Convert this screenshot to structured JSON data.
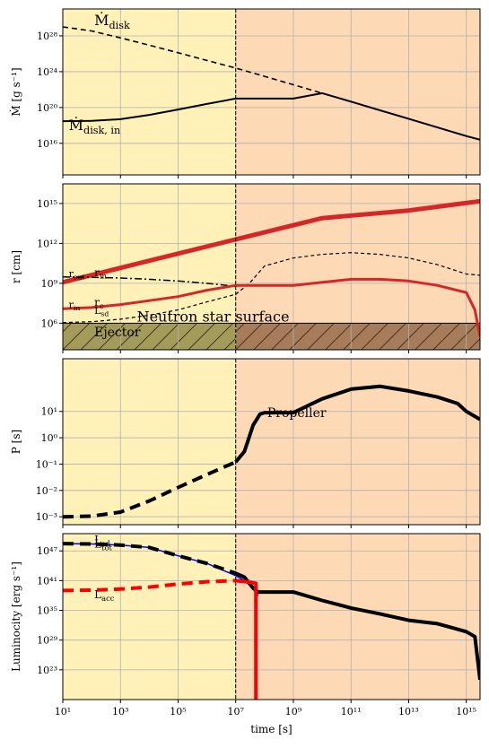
{
  "chart_data": [
    {
      "type": "line",
      "ylabel": "Ṁ [g s⁻¹]",
      "xscale": "log",
      "yscale": "log",
      "xlim": [
        10,
        3000000000000000.0
      ],
      "ylim": [
        3000000000000.0,
        1e+31
      ],
      "yticks": [
        {
          "v": 1e+16,
          "label": "10¹⁶"
        },
        {
          "v": 1e+20,
          "label": "10²⁰"
        },
        {
          "v": 1e+24,
          "label": "10²⁴"
        },
        {
          "v": 1e+28,
          "label": "10²⁸"
        }
      ],
      "grid": true,
      "regions": [
        {
          "from": 10,
          "to": 10000000.0,
          "color": "#fff1b8"
        },
        {
          "from": 10000000.0,
          "to": 3000000000000000.0,
          "color": "#fdd9b5"
        }
      ],
      "vline": 10000000.0,
      "series": [
        {
          "name": "Ṁdisk",
          "color": "#000000",
          "dash": "6,4",
          "width": 1.6,
          "x": [
            10,
            100,
            1000,
            10000.0,
            100000.0,
            1000000.0,
            10000000.0,
            100000000.0,
            1000000000.0,
            10000000000.0,
            100000000000.0,
            1000000000000.0,
            10000000000000.0,
            100000000000000.0,
            1000000000000000.0,
            3000000000000000.0
          ],
          "y": [
            1e+29,
            3.5e+28,
            6e+27,
            9e+26,
            1.3e+26,
            1.8e+25,
            2.5e+24,
            3e+23,
            3.5e+22,
            4e+21,
            4.5e+20,
            5e+19,
            5.5e+18,
            6e+17,
            6.5e+16,
            2.5e+16
          ]
        },
        {
          "name": "Ṁdisk,in",
          "color": "#000000",
          "dash": "",
          "width": 2,
          "x": [
            10,
            100,
            1000,
            10000.0,
            100000.0,
            1000000.0,
            10000000.0,
            100000000.0,
            1000000000.0,
            10000000000.0,
            100000000000.0,
            1000000000000.0,
            10000000000000.0,
            100000000000000.0,
            1000000000000000.0,
            3000000000000000.0
          ],
          "y": [
            3e+18,
            3.2e+18,
            5e+18,
            1.5e+19,
            6e+19,
            2.5e+20,
            1e+21,
            1e+21,
            1e+21,
            4e+21,
            4.5e+20,
            5e+19,
            5.5e+18,
            6e+17,
            6.5e+16,
            2.5e+16
          ]
        }
      ],
      "annotations": [
        {
          "text": "Ṁdisk",
          "x": 100,
          "y": 1.5e+29,
          "size": 16
        },
        {
          "text": "Ṁdisk, in",
          "x": 13,
          "y": 3e+17,
          "size": 16
        }
      ]
    },
    {
      "type": "line",
      "ylabel": "r [cm]",
      "xscale": "log",
      "yscale": "log",
      "xlim": [
        10,
        3000000000000000.0
      ],
      "ylim": [
        10000.0,
        3e+16
      ],
      "yticks": [
        {
          "v": 1000000.0,
          "label": "10⁶"
        },
        {
          "v": 1000000000.0,
          "label": "10⁹"
        },
        {
          "v": 1000000000000.0,
          "label": "10¹²"
        },
        {
          "v": 1000000000000000.0,
          "label": "10¹⁵"
        }
      ],
      "grid": true,
      "regions": [
        {
          "from": 10,
          "to": 10000000.0,
          "color": "#fff1b8"
        },
        {
          "from": 10000000.0,
          "to": 3000000000000000.0,
          "color": "#fdd9b5"
        }
      ],
      "vline": 10000000.0,
      "bands": [
        {
          "name": "Ejector",
          "from": 10,
          "to": 10000000.0,
          "ylow": 10000.0,
          "yhigh": 1000000.0,
          "color": "#a39b5a"
        },
        {
          "name": "",
          "from": 10000000.0,
          "to": 3000000000000000.0,
          "ylow": 10000.0,
          "yhigh": 1000000.0,
          "color": "#a67c5b"
        }
      ],
      "hline": 1000000.0,
      "series": [
        {
          "name": "rout",
          "color": "#d62728",
          "dash": "",
          "width": 5,
          "x": [
            10,
            10000.0,
            10000000.0,
            10000000000.0,
            10000000000000.0,
            3000000000000000.0
          ],
          "y": [
            1200000000.0,
            50000000000.0,
            2000000000000.0,
            80000000000000.0,
            300000000000000.0,
            1500000000000000.0
          ]
        },
        {
          "name": "rm",
          "color": "#000000",
          "dash": "8,3,2,3",
          "width": 1.5,
          "x": [
            10,
            100,
            1000,
            10000.0,
            100000.0,
            1000000.0,
            10000000.0
          ],
          "y": [
            3000000000.0,
            2800000000.0,
            2500000000.0,
            2000000000.0,
            1500000000.0,
            1000000000.0,
            600000000.0
          ]
        },
        {
          "name": "rc",
          "color": "#000000",
          "dash": "4,3",
          "width": 1.2,
          "x": [
            10,
            100,
            1000,
            10000.0,
            100000.0,
            1000000.0,
            10000000.0,
            30000000.0,
            100000000.0,
            1000000000.0,
            10000000000.0,
            100000000000.0,
            1000000000000.0,
            10000000000000.0,
            100000000000000.0,
            1000000000000000.0,
            3000000000000000.0
          ],
          "y": [
            1100000.0,
            1300000.0,
            2000000.0,
            4000000.0,
            10000000.0,
            40000000.0,
            150000000.0,
            1000000000.0,
            20000000000.0,
            80000000000.0,
            150000000000.0,
            200000000000.0,
            150000000000.0,
            80000000000.0,
            25000000000.0,
            5000000000.0,
            4000000000.0
          ]
        },
        {
          "name": "rin",
          "color": "#d62728",
          "dash": "",
          "width": 3,
          "x": [
            10,
            100,
            1000,
            10000.0,
            100000.0,
            1000000.0,
            10000000.0,
            100000000.0,
            1000000000.0,
            10000000000.0,
            100000000000.0,
            1000000000000.0,
            10000000000000.0,
            100000000000000.0,
            1000000000000000.0,
            2000000000000000.0,
            3000000000000000.0
          ],
          "y": [
            12000000.0,
            15000000.0,
            25000000.0,
            50000000.0,
            100000000.0,
            300000000.0,
            700000000.0,
            700000000.0,
            700000000.0,
            1200000000.0,
            2000000000.0,
            2000000000.0,
            1500000000.0,
            700000000.0,
            200000000.0,
            10000000.0,
            100000.0
          ]
        }
      ],
      "annotations": [
        {
          "text": "rout",
          "x": 13,
          "y": 3000000000.0,
          "size": 11,
          "color": "#d62728"
        },
        {
          "text": "rm",
          "x": 100,
          "y": 3500000000.0,
          "size": 12
        },
        {
          "text": "rin",
          "x": 13,
          "y": 14000000.0,
          "size": 11,
          "color": "#d62728"
        },
        {
          "text": "rc",
          "x": 100,
          "y": 20000000.0,
          "size": 12
        },
        {
          "text": "Neutron star surface",
          "x": 3000,
          "y": 1300000.0,
          "size": 16
        },
        {
          "text": "Ejector",
          "x": 100,
          "y": 100000.0,
          "size": 14
        },
        {
          "text": "Lsd",
          "x": 100,
          "y": 5000000.0,
          "size": 11
        }
      ]
    },
    {
      "type": "line",
      "ylabel": "P [s]",
      "xscale": "log",
      "yscale": "log",
      "xlim": [
        10,
        3000000000000000.0
      ],
      "ylim": [
        0.0005,
        1000.0
      ],
      "yticks": [
        {
          "v": 0.001,
          "label": "10⁻³"
        },
        {
          "v": 0.01,
          "label": "10⁻²"
        },
        {
          "v": 0.1,
          "label": "10⁻¹"
        },
        {
          "v": 1,
          "label": "10⁰"
        },
        {
          "v": 10,
          "label": "10¹"
        }
      ],
      "grid": true,
      "regions": [
        {
          "from": 10,
          "to": 10000000.0,
          "color": "#fff1b8"
        },
        {
          "from": 10000000.0,
          "to": 3000000000000000.0,
          "color": "#fdd9b5"
        }
      ],
      "vline": 10000000.0,
      "series": [
        {
          "name": "P-ejector",
          "color": "#000000",
          "dash": "12,7",
          "width": 4,
          "x": [
            10,
            100,
            1000,
            10000.0,
            100000.0,
            1000000.0,
            10000000.0
          ],
          "y": [
            0.001,
            0.00105,
            0.0015,
            0.004,
            0.013,
            0.04,
            0.12
          ]
        },
        {
          "name": "P-propeller",
          "color": "#000000",
          "dash": "",
          "width": 4,
          "x": [
            10000000.0,
            20000000.0,
            40000000.0,
            70000000.0,
            100000000.0,
            1000000000.0,
            10000000000.0,
            100000000000.0,
            1000000000000.0,
            10000000000000.0,
            100000000000000.0,
            500000000000000.0,
            1000000000000000.0,
            3000000000000000.0
          ],
          "y": [
            0.12,
            0.3,
            3,
            8,
            9,
            9,
            30,
            70,
            90,
            60,
            35,
            20,
            10,
            5
          ]
        }
      ],
      "annotations": [
        {
          "text": "Propeller",
          "x": 100000000.0,
          "y": 6,
          "size": 14
        }
      ]
    },
    {
      "type": "line",
      "ylabel": "Luminocity [erg s⁻¹]",
      "xlabel": "time [s]",
      "xscale": "log",
      "yscale": "log",
      "xlim": [
        10,
        3000000000000000.0
      ],
      "ylim": [
        1e+17,
        3e+50
      ],
      "xticks": [
        {
          "v": 10,
          "label": "10¹"
        },
        {
          "v": 1000,
          "label": "10³"
        },
        {
          "v": 100000.0,
          "label": "10⁵"
        },
        {
          "v": 10000000.0,
          "label": "10⁷"
        },
        {
          "v": 1000000000.0,
          "label": "10⁹"
        },
        {
          "v": 100000000000.0,
          "label": "10¹¹"
        },
        {
          "v": 10000000000000.0,
          "label": "10¹³"
        },
        {
          "v": 1000000000000000.0,
          "label": "10¹⁵"
        }
      ],
      "yticks": [
        {
          "v": 1e+23,
          "label": "10²³"
        },
        {
          "v": 1e+29,
          "label": "10²⁹"
        },
        {
          "v": 1e+35,
          "label": "10³⁵"
        },
        {
          "v": 1e+41,
          "label": "10⁴¹"
        },
        {
          "v": 1e+47,
          "label": "10⁴⁷"
        }
      ],
      "grid": true,
      "regions": [
        {
          "from": 10,
          "to": 10000000.0,
          "color": "#fff1b8"
        },
        {
          "from": 10000000.0,
          "to": 3000000000000000.0,
          "color": "#fdd9b5"
        }
      ],
      "vline": 10000000.0,
      "series": [
        {
          "name": "Lsd",
          "color": "#0000ff",
          "dash": "",
          "width": 1.5,
          "x": [
            10,
            100,
            1000,
            10000.0,
            100000.0,
            1000000.0,
            10000000.0,
            20000000.0,
            40000000.0,
            60000000.0
          ],
          "y": [
            3e+48,
            2.5e+48,
            1.5e+48,
            5e+47,
            1e+46,
            3e+44,
            1e+42,
            1e+41,
            3e+39,
            1e+38
          ]
        },
        {
          "name": "Ltot",
          "color": "#000000",
          "dash": "12,7",
          "width": 4,
          "x": [
            10,
            100,
            1000,
            10000.0,
            100000.0,
            1000000.0,
            10000000.0
          ],
          "y": [
            3e+48,
            2.5e+48,
            1.5e+48,
            5e+47,
            1e+46,
            3e+44,
            3e+42
          ]
        },
        {
          "name": "Ltot-after",
          "color": "#000000",
          "dash": "",
          "width": 4,
          "x": [
            10000000.0,
            20000000.0,
            40000000.0,
            60000000.0,
            100000000.0,
            1000000000.0,
            10000000000.0,
            100000000000.0,
            1000000000000.0,
            10000000000000.0,
            100000000000000.0,
            1000000000000000.0,
            2000000000000000.0,
            3000000000000000.0
          ],
          "y": [
            3e+42,
            5e+41,
            3e+39,
            5e+38,
            5e+38,
            5e+38,
            1e+37,
            3e+35,
            2e+34,
            1e+33,
            2e+32,
            5e+30,
            5e+29,
            1e+21
          ]
        },
        {
          "name": "Lacc",
          "color": "#ff0000",
          "dash": "12,7",
          "width": 4,
          "x": [
            10,
            100,
            1000,
            10000.0,
            100000.0,
            1000000.0,
            10000000.0
          ],
          "y": [
            1e+39,
            1.2e+39,
            2e+39,
            5e+39,
            2e+40,
            6e+40,
            1e+41
          ]
        },
        {
          "name": "Lacc-after",
          "color": "#ff0000",
          "dash": "",
          "width": 4,
          "x": [
            10000000.0,
            30000000.0,
            50000000.0,
            50100000.0
          ],
          "y": [
            1e+41,
            5e+40,
            3e+40,
            1e+17
          ]
        }
      ],
      "annotations": [
        {
          "text": "Lsd",
          "x": 100,
          "y": 3e+48,
          "size": 12,
          "color": "#0000ff"
        },
        {
          "text": "Ltot",
          "x": 100,
          "y": 5e+47,
          "size": 12
        },
        {
          "text": "Lacc",
          "x": 100,
          "y": 3e+37,
          "size": 12,
          "color": "#ff0000"
        }
      ]
    }
  ]
}
